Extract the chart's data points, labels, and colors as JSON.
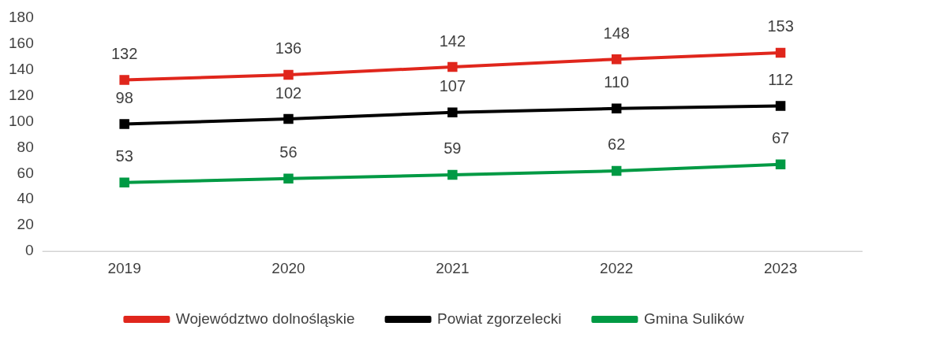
{
  "chart_data": {
    "type": "line",
    "categories": [
      "2019",
      "2020",
      "2021",
      "2022",
      "2023"
    ],
    "series": [
      {
        "name": "Województwo dolnośląskie",
        "color": "#e0261c",
        "values": [
          132,
          136,
          142,
          148,
          153
        ]
      },
      {
        "name": "Powiat zgorzelecki",
        "color": "#000000",
        "values": [
          98,
          102,
          107,
          110,
          112
        ]
      },
      {
        "name": "Gmina Sulików",
        "color": "#009a44",
        "values": [
          53,
          56,
          59,
          62,
          67
        ]
      }
    ],
    "ylim": [
      0,
      180
    ],
    "yticks": [
      0,
      20,
      40,
      60,
      80,
      100,
      120,
      140,
      160,
      180
    ],
    "grid": false,
    "legend": "bottom",
    "marker": "square",
    "line_style": "solid",
    "data_labels": true
  }
}
